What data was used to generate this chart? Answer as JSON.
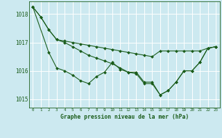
{
  "title": "Graphe pression niveau de la mer (hPa)",
  "background_color": "#cce9f0",
  "grid_color": "#ffffff",
  "line_color": "#1a5c1a",
  "xlim": [
    -0.5,
    23.5
  ],
  "ylim": [
    1014.7,
    1018.45
  ],
  "yticks": [
    1015,
    1016,
    1017,
    1018
  ],
  "xticks": [
    0,
    1,
    2,
    3,
    4,
    5,
    6,
    7,
    8,
    9,
    10,
    11,
    12,
    13,
    14,
    15,
    16,
    17,
    18,
    19,
    20,
    21,
    22,
    23
  ],
  "series1_x": [
    0,
    1,
    2,
    3,
    4,
    5,
    6,
    7,
    8,
    9,
    10,
    11,
    12,
    13,
    14,
    15,
    16,
    17,
    18,
    19,
    20,
    21,
    22,
    23
  ],
  "series1": [
    1018.25,
    1017.9,
    1017.45,
    1017.1,
    1017.05,
    1017.0,
    1016.95,
    1016.9,
    1016.85,
    1016.8,
    1016.75,
    1016.7,
    1016.65,
    1016.6,
    1016.55,
    1016.5,
    1016.7,
    1016.7,
    1016.7,
    1016.7,
    1016.7,
    1016.7,
    1016.8,
    1016.85
  ],
  "series2_x": [
    0,
    1,
    2,
    3,
    4,
    5,
    6,
    7,
    8,
    9,
    10,
    11,
    12,
    13,
    14,
    15,
    16,
    17,
    18,
    19,
    20,
    21,
    22,
    23
  ],
  "series2": [
    1018.25,
    1017.9,
    1017.45,
    1017.1,
    1017.0,
    1016.85,
    1016.7,
    1016.55,
    1016.45,
    1016.35,
    1016.25,
    1016.1,
    1015.95,
    1015.9,
    1015.55,
    1015.55,
    1015.15,
    1015.3,
    1015.6,
    1016.0,
    1016.0,
    1016.3,
    1016.8,
    1016.85
  ],
  "series3_x": [
    0,
    2,
    3,
    4,
    5,
    6,
    7,
    8,
    9,
    10,
    11,
    12,
    13,
    14,
    15,
    16,
    17,
    18,
    19,
    20,
    21,
    22,
    23
  ],
  "series3": [
    1018.25,
    1016.65,
    1016.1,
    1016.0,
    1015.85,
    1015.65,
    1015.55,
    1015.8,
    1015.95,
    1016.3,
    1016.05,
    1015.95,
    1015.95,
    1015.6,
    1015.6,
    1015.15,
    1015.3,
    1015.6,
    1016.0,
    1016.0,
    1016.3,
    1016.8,
    1016.85
  ],
  "marker_size": 2.0,
  "line_width": 0.8
}
